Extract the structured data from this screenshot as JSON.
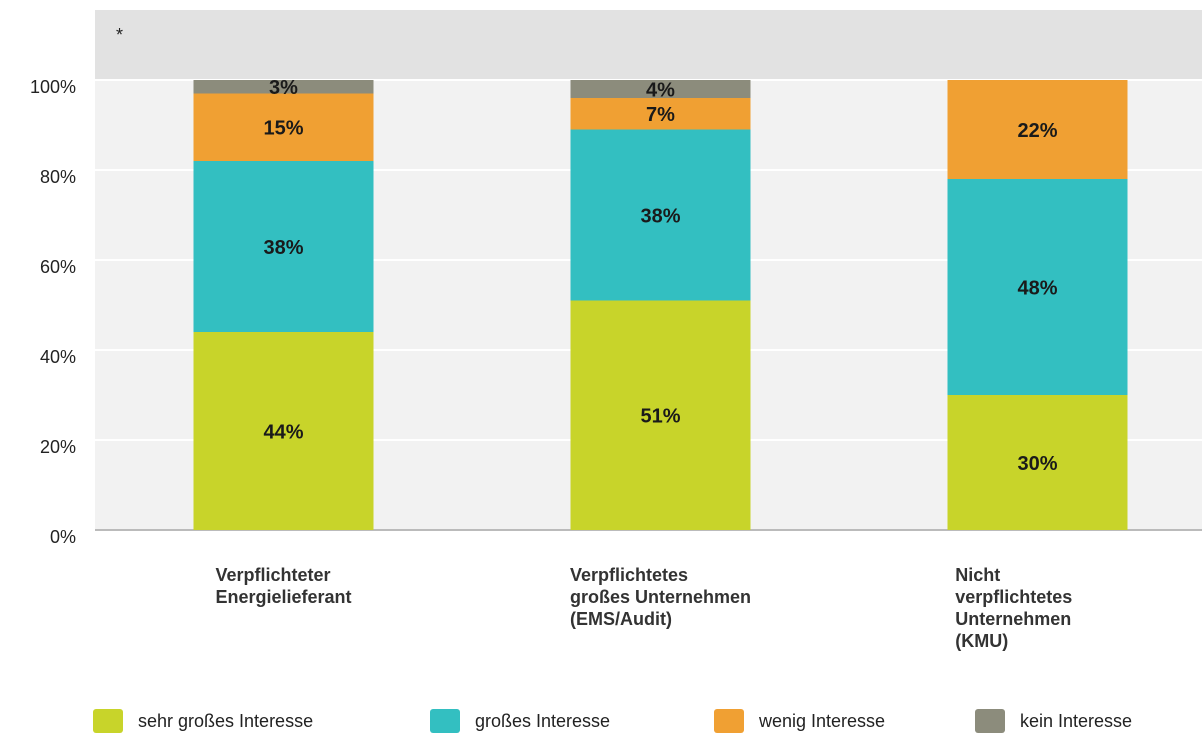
{
  "chart_data": {
    "type": "stacked_bar",
    "note": "*",
    "categories": [
      "Verpflichteter\nEnergielieferant",
      "Verpflichtetes\ngroßes Unternehmen\n(EMS/Audit)",
      "Nicht verpflichtetes\nUnternehmen (KMU)"
    ],
    "series": [
      {
        "name": "sehr großes Interesse",
        "color": "#c8d42a",
        "values": [
          44,
          51,
          30
        ],
        "value_labels": [
          "44%",
          "51%",
          "30%"
        ]
      },
      {
        "name": "großes Interesse",
        "color": "#33bfc1",
        "values": [
          38,
          38,
          48
        ],
        "value_labels": [
          "38%",
          "38%",
          "48%"
        ]
      },
      {
        "name": "wenig Interesse",
        "color": "#f0a033",
        "values": [
          15,
          7,
          22
        ],
        "value_labels": [
          "15%",
          "7%",
          "22%"
        ]
      },
      {
        "name": "kein Interesse",
        "color": "#8c8c7c",
        "values": [
          3,
          4,
          null
        ],
        "value_labels": [
          "3%",
          "4%",
          null
        ]
      }
    ],
    "ylim": [
      0,
      100
    ],
    "yticks": [
      {
        "value": 0,
        "label": "0%"
      },
      {
        "value": 20,
        "label": "20%"
      },
      {
        "value": 40,
        "label": "40%"
      },
      {
        "value": 60,
        "label": "60%"
      },
      {
        "value": 80,
        "label": "80%"
      },
      {
        "value": 100,
        "label": "100%"
      }
    ],
    "grid": true
  }
}
